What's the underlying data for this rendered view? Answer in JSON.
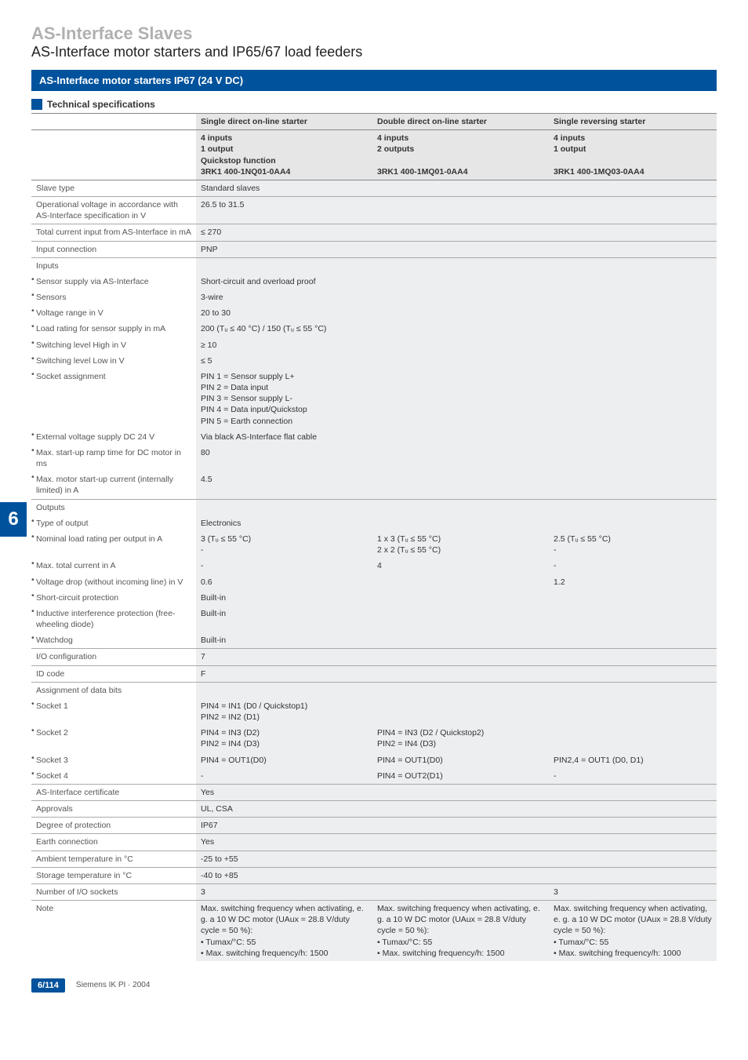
{
  "header": {
    "title_light": "AS-Interface Slaves",
    "title_sub": "AS-Interface motor starters and IP65/67 load feeders",
    "blue_bar": "AS-Interface motor starters IP67 (24 V DC)",
    "tech_specs": "Technical specifications"
  },
  "side_tab": "6",
  "colhdr": {
    "c1_title": "Single direct on-line starter",
    "c2_title": "Double direct on-line starter",
    "c3_title": "Single reversing starter",
    "c1_l1": "4 inputs",
    "c1_l2": "1 output",
    "c1_l3": "Quickstop function",
    "c1_code": "3RK1 400-1NQ01-0AA4",
    "c2_l1": "4 inputs",
    "c2_l2": "2 outputs",
    "c2_code": "3RK1 400-1MQ01-0AA4",
    "c3_l1": "4 inputs",
    "c3_l2": "1 output",
    "c3_code": "3RK1 400-1MQ03-0AA4"
  },
  "rows": {
    "slave_type": {
      "label": "Slave type",
      "v1": "Standard slaves"
    },
    "op_voltage": {
      "label": "Operational voltage in accordance with AS-Interface specification in V",
      "v1": "26.5 to 31.5"
    },
    "total_current": {
      "label": "Total current input from AS-Interface in mA",
      "v1": "≤ 270"
    },
    "input_conn": {
      "label": "Input connection",
      "v1": "PNP"
    },
    "inputs_hdr": "Inputs",
    "sensor_supply": {
      "label": "Sensor supply via AS-Interface",
      "v1": "Short-circuit and overload proof"
    },
    "sensors": {
      "label": "Sensors",
      "v1": "3-wire"
    },
    "voltage_range": {
      "label": "Voltage range in V",
      "v1": "20 to 30"
    },
    "load_rating": {
      "label": "Load rating for sensor supply in mA",
      "v1": "200 (Tᵤ ≤ 40 °C) / 150 (Tᵤ ≤ 55 °C)"
    },
    "sw_high": {
      "label": "Switching level High in V",
      "v1": "≥ 10"
    },
    "sw_low": {
      "label": "Switching level Low in V",
      "v1": "≤ 5"
    },
    "socket_assign": {
      "label": "Socket assignment",
      "v1": "PIN 1 = Sensor supply L+\nPIN 2 = Data input\nPIN 3 = Sensor supply L-\nPIN 4 = Data input/Quickstop\nPIN 5 = Earth connection"
    },
    "ext_voltage": {
      "label": "External voltage supply DC 24 V",
      "v1": "Via black AS-Interface flat cable"
    },
    "max_startup": {
      "label": "Max. start-up ramp time for DC motor in ms",
      "v1": "80"
    },
    "max_motor": {
      "label": "Max. motor start-up current (internally limited) in A",
      "v1": "4.5"
    },
    "outputs_hdr": "Outputs",
    "type_output": {
      "label": "Type of output",
      "v1": "Electronics"
    },
    "nominal_load": {
      "label": "Nominal load rating per output in A",
      "v1": "3 (Tᵤ ≤ 55 °C)\n-",
      "v2": "1 x 3 (Tᵤ ≤ 55 °C)\n2 x 2 (Tᵤ ≤ 55 °C)",
      "v3": "2.5 (Tᵤ ≤ 55 °C)\n-"
    },
    "max_total": {
      "label": "Max. total current in A",
      "v1": "-",
      "v2": "4",
      "v3": "-"
    },
    "voltage_drop": {
      "label": "Voltage drop (without incoming line) in V",
      "v1": "0.6",
      "v2": "",
      "v3": "1.2"
    },
    "short_circuit": {
      "label": "Short-circuit protection",
      "v1": "Built-in"
    },
    "inductive": {
      "label": "Inductive interference protection (free-wheeling diode)",
      "v1": "Built-in"
    },
    "watchdog": {
      "label": "Watchdog",
      "v1": "Built-in"
    },
    "io_config": {
      "label": "I/O configuration",
      "v1": "7"
    },
    "id_code": {
      "label": "ID code",
      "v1": "F"
    },
    "assign_hdr": "Assignment of data bits",
    "socket1": {
      "label": "Socket 1",
      "v1": "PIN4 = IN1 (D0 / Quickstop1)\nPIN2 = IN2 (D1)"
    },
    "socket2": {
      "label": "Socket 2",
      "v1": "PIN4 = IN3 (D2)\nPIN2 = IN4 (D3)",
      "v2": "PIN4 = IN3 (D2 / Quickstop2)\nPIN2 = IN4 (D3)"
    },
    "socket3": {
      "label": "Socket 3",
      "v1": "PIN4 = OUT1(D0)",
      "v2": "PIN4 = OUT1(D0)",
      "v3": "PIN2,4 = OUT1 (D0, D1)"
    },
    "socket4": {
      "label": "Socket 4",
      "v1": "-",
      "v2": "PIN4 = OUT2(D1)",
      "v3": "-"
    },
    "as_cert": {
      "label": "AS-Interface certificate",
      "v1": "Yes"
    },
    "approvals": {
      "label": "Approvals",
      "v1": "UL, CSA"
    },
    "degree": {
      "label": "Degree of protection",
      "v1": "IP67"
    },
    "earth": {
      "label": "Earth connection",
      "v1": "Yes"
    },
    "ambient": {
      "label": "Ambient temperature in °C",
      "v1": "-25 to +55"
    },
    "storage": {
      "label": "Storage temperature in °C",
      "v1": "-40 to +85"
    },
    "num_io": {
      "label": "Number of I/O sockets",
      "v1": "3",
      "v2": "",
      "v3": "3"
    },
    "note": {
      "label": "Note",
      "v1": "Max. switching frequency when activating, e. g. a 10 W DC motor (UAux = 28.8 V/duty cycle = 50 %):\n• Tumax/°C: 55\n• Max. switching frequency/h: 1500",
      "v2": "Max. switching frequency when activating, e. g. a 10 W DC motor (UAux = 28.8 V/duty cycle = 50 %):\n• Tumax/°C: 55\n• Max. switching frequency/h: 1500",
      "v3": "Max. switching frequency when activating, e. g. a 10 W DC motor (UAux = 28.8 V/duty cycle = 50 %):\n• Tumax/°C: 55\n• Max. switching frequency/h: 1000"
    }
  },
  "footer": {
    "page": "6/114",
    "src": "Siemens IK PI · 2004"
  }
}
